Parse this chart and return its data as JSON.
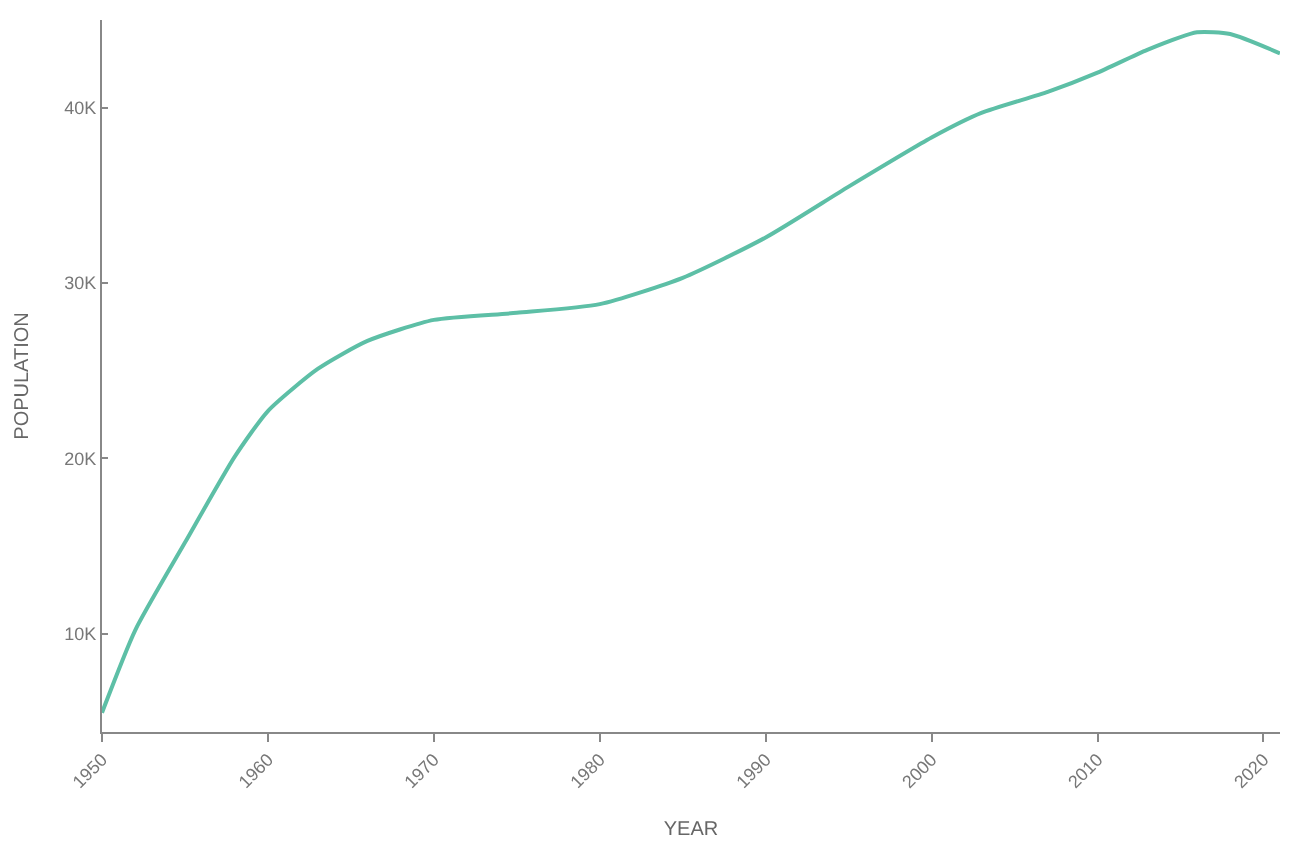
{
  "chart_data": {
    "type": "line",
    "xlabel": "YEAR",
    "ylabel": "POPULATION",
    "x": [
      1950,
      1952,
      1955,
      1958,
      1960,
      1963,
      1966,
      1970,
      1975,
      1980,
      1985,
      1990,
      1995,
      2000,
      2003,
      2007,
      2010,
      2013,
      2016,
      2018,
      2021
    ],
    "series": [
      {
        "color": "#5dbfa6",
        "values": [
          5500,
          10200,
          15200,
          20100,
          22700,
          25100,
          26700,
          27900,
          28300,
          28800,
          30300,
          32600,
          35500,
          38300,
          39700,
          40900,
          42000,
          43300,
          44300,
          44200,
          43100
        ]
      }
    ],
    "xlim": [
      1950,
      2021
    ],
    "xticks": [
      1950,
      1960,
      1970,
      1980,
      1990,
      2000,
      2010,
      2020
    ],
    "ylim": [
      4400,
      45000
    ],
    "yticks": [
      {
        "value": 10000,
        "label": "10K"
      },
      {
        "value": 20000,
        "label": "20K"
      },
      {
        "value": 30000,
        "label": "30K"
      },
      {
        "value": 40000,
        "label": "40K"
      }
    ],
    "marker": "none",
    "line_style": "solid"
  }
}
